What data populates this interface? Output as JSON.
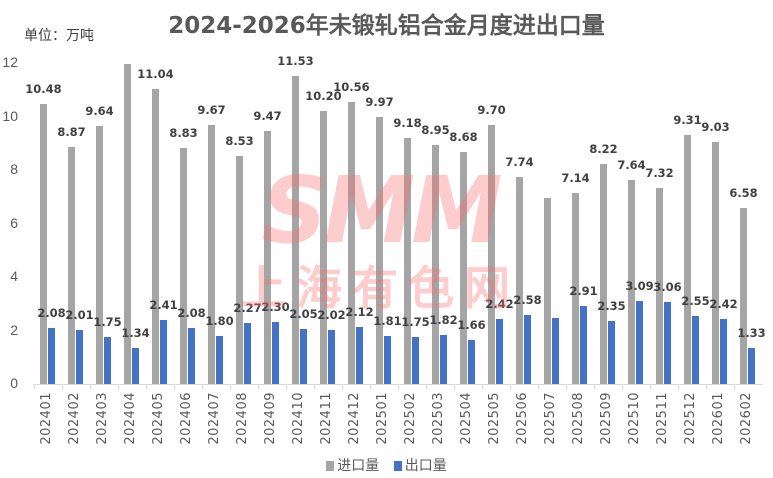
{
  "title": "2024-2026年未锻轧铝合金月度进出口量",
  "unit_label": "单位：万吨",
  "watermark": {
    "line1": "SMM",
    "line2": "上海有色网"
  },
  "legend": [
    {
      "label": "进口量",
      "color": "#a5a5a5"
    },
    {
      "label": "出口量",
      "color": "#4472c4"
    }
  ],
  "y_ticks": [
    "0",
    "2",
    "4",
    "6",
    "8",
    "10",
    "12"
  ],
  "chart_data": {
    "type": "bar",
    "title": "2024-2026年未锻轧铝合金月度进出口量",
    "xlabel": "",
    "ylabel": "单位：万吨",
    "ylim": [
      0,
      12
    ],
    "grid": false,
    "legend_position": "bottom",
    "categories": [
      "202401",
      "202402",
      "202403",
      "202404",
      "202405",
      "202406",
      "202407",
      "202408",
      "202409",
      "202410",
      "202411",
      "202412",
      "202501",
      "202502",
      "202503",
      "202504",
      "202505",
      "202506",
      "202507",
      "202508",
      "202509",
      "202510",
      "202511",
      "202512",
      "202601",
      "202602"
    ],
    "series": [
      {
        "name": "进口量",
        "color": "#a5a5a5",
        "values": [
          10.48,
          8.87,
          9.64,
          11.96,
          11.04,
          8.83,
          9.67,
          8.53,
          9.47,
          11.53,
          10.2,
          10.56,
          9.97,
          9.18,
          8.95,
          8.68,
          9.7,
          7.74,
          6.95,
          7.14,
          8.22,
          7.64,
          7.32,
          9.31,
          9.03,
          6.58
        ],
        "labels": [
          "10.48",
          "8.87",
          "9.64",
          "",
          "11.04",
          "8.83",
          "9.67",
          "8.53",
          "9.47",
          "11.53",
          "10.20",
          "10.56",
          "9.97",
          "9.18",
          "8.95",
          "8.68",
          "9.70",
          "7.74",
          "",
          "7.14",
          "8.22",
          "7.64",
          "7.32",
          "9.31",
          "9.03",
          "6.58"
        ]
      },
      {
        "name": "出口量",
        "color": "#4472c4",
        "values": [
          2.08,
          2.01,
          1.75,
          1.34,
          2.41,
          2.08,
          1.8,
          2.27,
          2.3,
          2.05,
          2.02,
          2.12,
          1.81,
          1.75,
          1.82,
          1.66,
          2.42,
          2.58,
          2.47,
          2.91,
          2.35,
          3.09,
          3.06,
          2.55,
          2.42,
          1.33
        ],
        "labels": [
          "2.08",
          "2.01",
          "1.75",
          "1.34",
          "2.41",
          "2.08",
          "1.80",
          "2.27",
          "2.30",
          "2.05",
          "2.02",
          "2.12",
          "1.81",
          "1.75",
          "1.82",
          "1.66",
          "2.42",
          "2.58",
          "",
          "2.91",
          "2.35",
          "3.09",
          "3.06",
          "2.55",
          "2.42",
          "1.33"
        ]
      }
    ]
  }
}
